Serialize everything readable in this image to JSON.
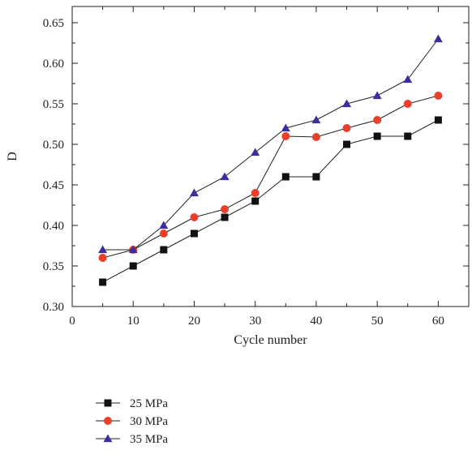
{
  "chart_data": {
    "type": "line",
    "title": "",
    "xlabel": "Cycle number",
    "ylabel": "D",
    "xlim": [
      0,
      65
    ],
    "ylim": [
      0.3,
      0.67
    ],
    "x_ticks": [
      0,
      10,
      20,
      30,
      40,
      50,
      60
    ],
    "x_tick_labels": [
      "0",
      "10",
      "20",
      "30",
      "40",
      "50",
      "60"
    ],
    "y_ticks": [
      0.3,
      0.35,
      0.4,
      0.45,
      0.5,
      0.55,
      0.6,
      0.65
    ],
    "y_tick_labels": [
      "0.30",
      "0.35",
      "0.40",
      "0.45",
      "0.50",
      "0.55",
      "0.60",
      "0.65"
    ],
    "grid": false,
    "legend_position": "below",
    "x": [
      5,
      10,
      15,
      20,
      25,
      30,
      35,
      40,
      45,
      50,
      55,
      60
    ],
    "series": [
      {
        "name": "25 MPa",
        "color": "#111111",
        "marker": "square",
        "values": [
          0.33,
          0.35,
          0.37,
          0.39,
          0.41,
          0.43,
          0.46,
          0.46,
          0.5,
          0.51,
          0.51,
          0.53
        ]
      },
      {
        "name": "30 MPa",
        "color": "#e8402a",
        "marker": "circle",
        "values": [
          0.36,
          0.37,
          0.39,
          0.41,
          0.42,
          0.44,
          0.51,
          0.509,
          0.52,
          0.53,
          0.55,
          0.56
        ]
      },
      {
        "name": "35 MPa",
        "color": "#3a2f9e",
        "marker": "triangle",
        "values": [
          0.37,
          0.37,
          0.4,
          0.44,
          0.46,
          0.49,
          0.52,
          0.53,
          0.55,
          0.56,
          0.58,
          0.63
        ]
      }
    ]
  }
}
